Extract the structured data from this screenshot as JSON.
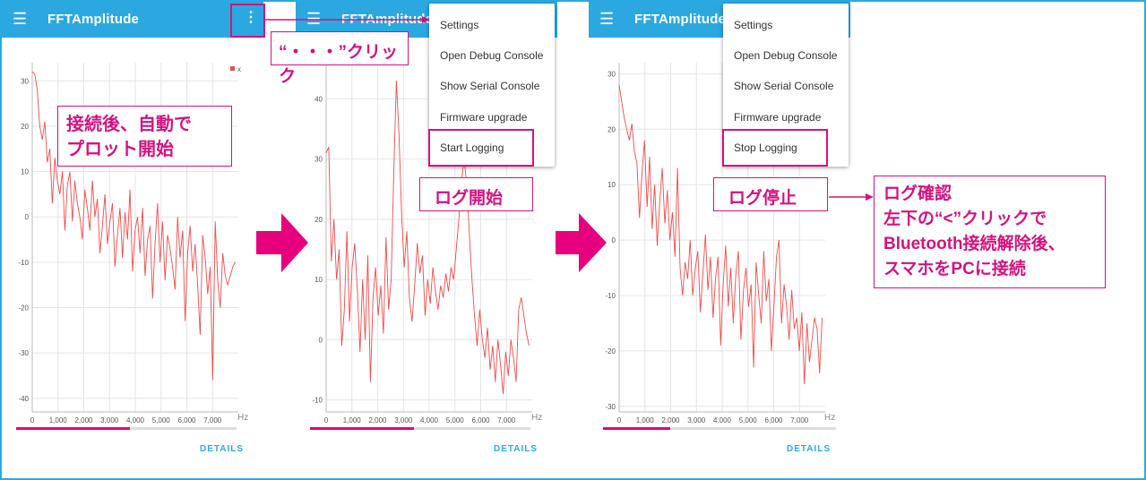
{
  "app": {
    "title": "FFTAmplitude",
    "details_label": "DETAILS"
  },
  "menu": {
    "items": [
      "Settings",
      "Open Debug Console",
      "Show Serial Console",
      "Firmware upgrade"
    ],
    "start_logging": "Start Logging",
    "stop_logging": "Stop Logging"
  },
  "annotations": {
    "auto_plot_line1": "接続後、自動で",
    "auto_plot_line2": "プロット開始",
    "kebab_click": "“・・・”クリック",
    "log_start": "ログ開始",
    "log_stop": "ログ停止",
    "log_check_1": "ログ確認",
    "log_check_2": "左下の“<”クリックで",
    "log_check_3": "Bluetooth接続解除後、",
    "log_check_4": "スマホをPCに接続"
  },
  "colors": {
    "appbar": "#2BA8E0",
    "accent": "#D4127F",
    "series": "#EE4B4B",
    "progress": "#E6007E",
    "arrow": "#E6007E"
  },
  "chart_data": [
    {
      "type": "line",
      "xlabel": "Hz",
      "legend": "x",
      "ylim": [
        -43,
        34
      ],
      "xlim": [
        0,
        8000
      ],
      "yticks": [
        "30",
        "20",
        "10",
        "0",
        "-10",
        "-20",
        "-30",
        "-40"
      ],
      "xticks": [
        "0",
        "1,000",
        "2,000",
        "3,000",
        "4,000",
        "5,000",
        "6,000",
        "7,000"
      ],
      "series": [
        {
          "values": [
            32,
            31.5,
            28,
            20,
            17,
            21,
            12,
            15,
            3,
            13,
            8,
            5,
            10,
            -3,
            7,
            10,
            -1,
            8,
            3,
            0,
            -5,
            6,
            2,
            -3,
            8,
            0,
            4,
            -8,
            -2,
            5,
            -6,
            -1,
            3,
            -11,
            -4,
            2,
            -9,
            1,
            -5,
            6,
            -12,
            -3,
            0,
            -8,
            2,
            -13,
            -5,
            -2,
            -18,
            -6,
            3,
            -10,
            -1,
            -14,
            -4,
            -7,
            -11,
            -16,
            0,
            -9,
            -3,
            -23,
            -8,
            -2,
            -12,
            -6,
            -15,
            -26,
            -4,
            -9,
            -17,
            -11,
            -36,
            -1,
            -14,
            -20,
            -8,
            -13,
            -15,
            -13,
            -11,
            -10
          ]
        }
      ]
    },
    {
      "type": "line",
      "xlabel": "Hz",
      "ylim": [
        -12,
        46
      ],
      "xlim": [
        0,
        8000
      ],
      "yticks": [
        "40",
        "30",
        "20",
        "10",
        "0",
        "-10"
      ],
      "xticks": [
        "0",
        "1,000",
        "2,000",
        "3,000",
        "4,000",
        "5,000",
        "6,000",
        "7,000"
      ],
      "series": [
        {
          "values": [
            31,
            32,
            13,
            20,
            10,
            15,
            -1,
            5,
            18,
            3,
            12,
            16,
            8,
            -2,
            10,
            0,
            14,
            -7,
            7,
            12,
            4,
            9,
            1,
            17,
            5,
            10,
            28,
            43,
            34,
            21,
            12,
            18,
            7,
            3,
            9,
            16,
            11,
            14,
            4,
            10,
            6,
            12,
            8,
            5,
            9,
            7,
            11,
            8,
            12,
            10,
            15,
            20,
            26,
            30,
            26,
            18,
            10,
            4,
            -1,
            5,
            0,
            -3,
            2,
            -5,
            -1,
            -7,
            0,
            -4,
            -9,
            -2,
            -6,
            0,
            -3,
            -7,
            5,
            7,
            4,
            1,
            -1
          ]
        }
      ]
    },
    {
      "type": "line",
      "xlabel": "Hz",
      "ylim": [
        -31,
        32
      ],
      "xlim": [
        0,
        8000
      ],
      "yticks": [
        "30",
        "20",
        "10",
        "0",
        "-10",
        "-20",
        "-30"
      ],
      "xticks": [
        "0",
        "1,000",
        "2,000",
        "3,000",
        "4,000",
        "5,000",
        "6,000",
        "7,000"
      ],
      "series": [
        {
          "values": [
            28,
            25,
            22,
            20,
            18,
            21,
            16,
            14,
            4,
            12,
            18,
            6,
            15,
            2,
            10,
            -1,
            7,
            13,
            3,
            9,
            0,
            5,
            -3,
            13,
            -5,
            -10,
            -4,
            -7,
            0,
            -10,
            -5,
            -2,
            -13,
            -6,
            1,
            -9,
            -3,
            -14,
            -7,
            -3,
            -19,
            -8,
            -1,
            -12,
            -5,
            -15,
            -6,
            -2,
            -18,
            -9,
            -5,
            -12,
            -8,
            -23,
            -4,
            -10,
            -15,
            -2,
            -11,
            -7,
            -20,
            -12,
            -3,
            0,
            -15,
            -8,
            -12,
            -18,
            -9,
            -16,
            -14,
            -20,
            -13,
            -26,
            -15,
            -22,
            -18,
            -14,
            -16,
            -24,
            -14
          ]
        }
      ]
    }
  ]
}
